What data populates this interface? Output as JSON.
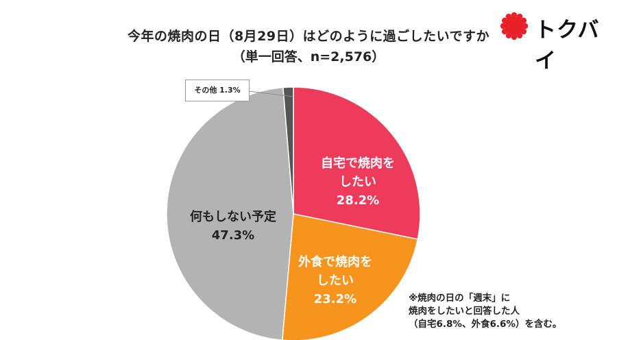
{
  "title_line1": "今年の焼肉の日（8月29日）はどのように過ごしたいですか",
  "title_line2": "（単一回答、n=2,576）",
  "logo": {
    "text": "トクバイ",
    "icon": "red-sun-badge-icon",
    "color": "#e8202a"
  },
  "note": {
    "line1": "※焼肉の日の「週末」に",
    "line2": "焼肉をしたいと回答した人",
    "line3": "（自宅6.8%、外食6.6%）を含む。"
  },
  "chart_data": {
    "type": "pie",
    "title": "今年の焼肉の日（8月29日）はどのように過ごしたいですか",
    "subtitle": "（単一回答、n=2,576）",
    "slices": [
      {
        "label_lines": [
          "自宅で焼肉を",
          "したい"
        ],
        "value_text": "28.2%",
        "value": 28.2,
        "color": "#ef3b5b",
        "text_color": "#ffffff"
      },
      {
        "label_lines": [
          "外食で焼肉を",
          "したい"
        ],
        "value_text": "23.2%",
        "value": 23.2,
        "color": "#f7941d",
        "text_color": "#ffffff"
      },
      {
        "label_lines": [
          "何もしない予定"
        ],
        "value_text": "47.3%",
        "value": 47.3,
        "color": "#b3b3b3",
        "text_color": "#222222"
      },
      {
        "label_lines": [
          "その他 1.3%"
        ],
        "value_text": "",
        "value": 1.3,
        "color": "#555555",
        "text_color": "#222222"
      }
    ]
  }
}
